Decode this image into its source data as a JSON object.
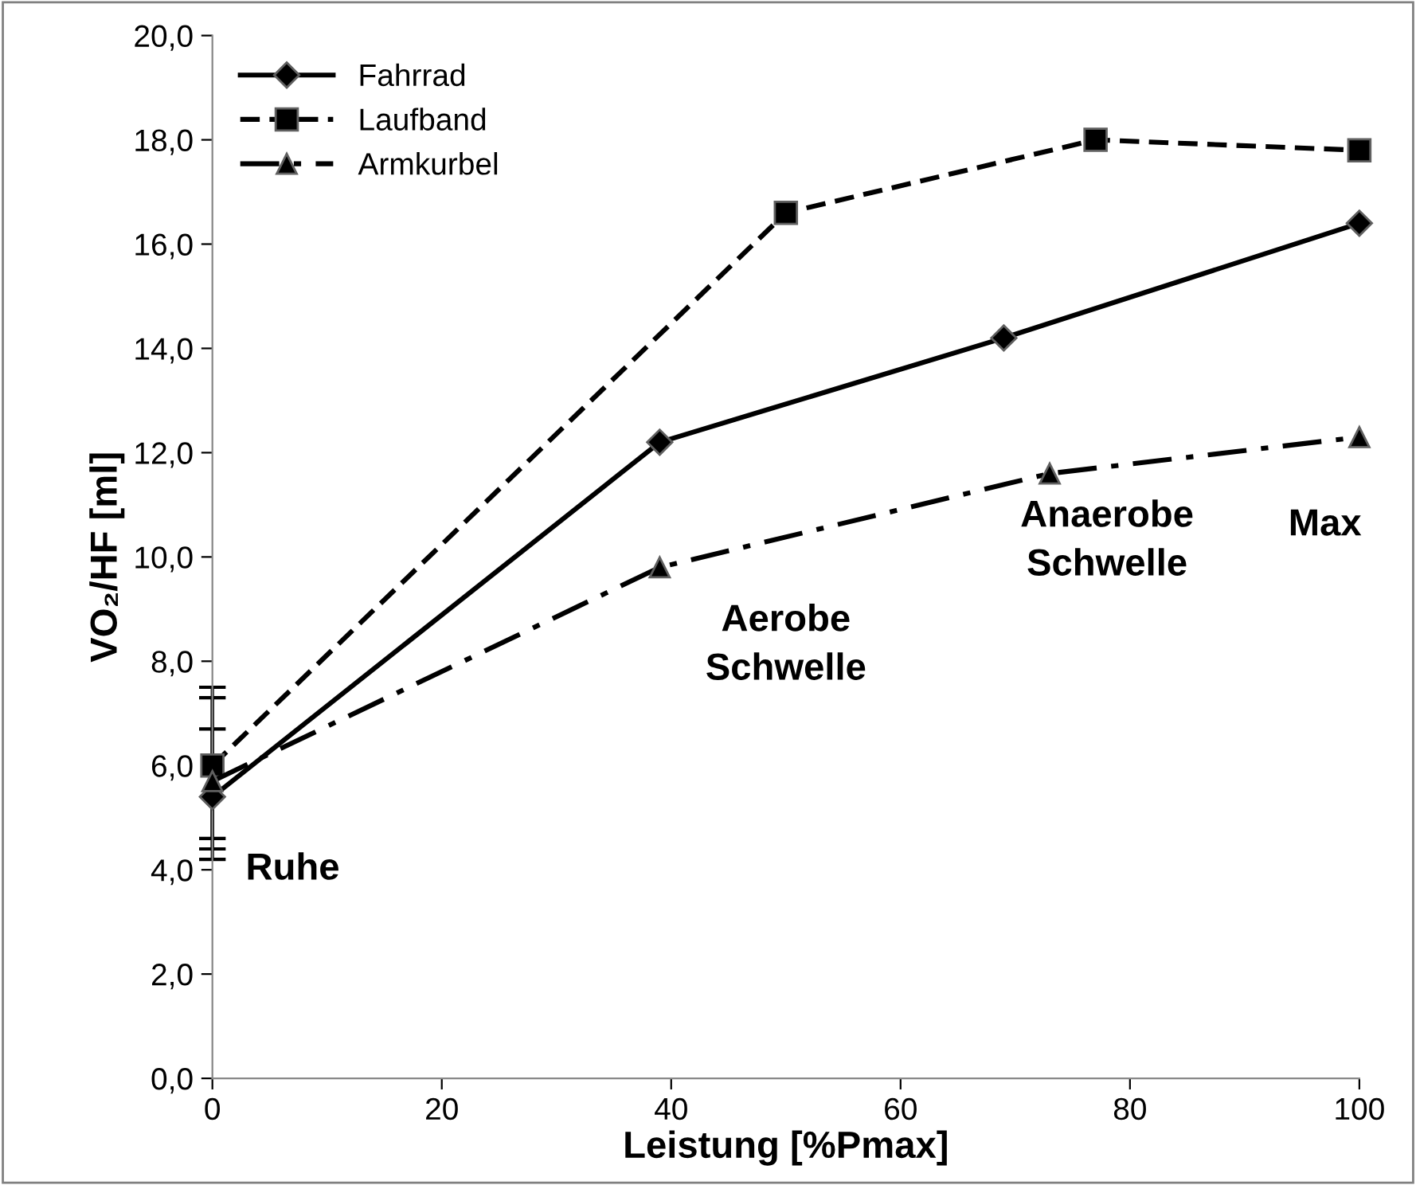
{
  "chart_data": {
    "type": "line",
    "xlabel": "Leistung [%Pmax]",
    "ylabel": "VO₂/HF [ml]",
    "xlim": [
      0,
      100
    ],
    "xticks": [
      0,
      20,
      40,
      60,
      80,
      100
    ],
    "ylim": [
      0,
      20
    ],
    "yticks": [
      {
        "value": 0,
        "label": "0,0"
      },
      {
        "value": 2,
        "label": "2,0"
      },
      {
        "value": 4,
        "label": "4,0"
      },
      {
        "value": 6,
        "label": "6,0"
      },
      {
        "value": 8,
        "label": "8,0"
      },
      {
        "value": 10,
        "label": "10,0"
      },
      {
        "value": 12,
        "label": "12,0"
      },
      {
        "value": 14,
        "label": "14,0"
      },
      {
        "value": 16,
        "label": "16,0"
      },
      {
        "value": 18,
        "label": "18,0"
      },
      {
        "value": 20,
        "label": "20,0"
      }
    ],
    "grid": false,
    "legend": "top left",
    "series": [
      {
        "name": "Fahrrad",
        "color": "#000000",
        "x": [
          0,
          39,
          69,
          100
        ],
        "values": [
          5.4,
          12.2,
          14.2,
          16.4
        ],
        "marker": "diamond",
        "line_style": "solid",
        "errors": [
          [
            4.2,
            7.3
          ],
          null,
          null,
          null
        ]
      },
      {
        "name": "Laufband",
        "color": "#000000",
        "x": [
          0,
          50,
          77,
          100
        ],
        "values": [
          6.0,
          16.6,
          18.0,
          17.8
        ],
        "marker": "square",
        "line_style": "dashed",
        "errors": [
          [
            4.6,
            7.5
          ],
          null,
          null,
          null
        ]
      },
      {
        "name": "Armkurbel",
        "color": "#000000",
        "x": [
          0,
          39,
          73,
          100
        ],
        "values": [
          5.7,
          9.8,
          11.6,
          12.3
        ],
        "marker": "triangle",
        "line_style": "dashdot",
        "errors": [
          [
            4.4,
            6.7
          ],
          null,
          null,
          null
        ]
      }
    ],
    "annotations": [
      "Ruhe",
      "Aerobe\nSchwelle",
      "Anaerobe\nSchwelle",
      "Max"
    ]
  }
}
